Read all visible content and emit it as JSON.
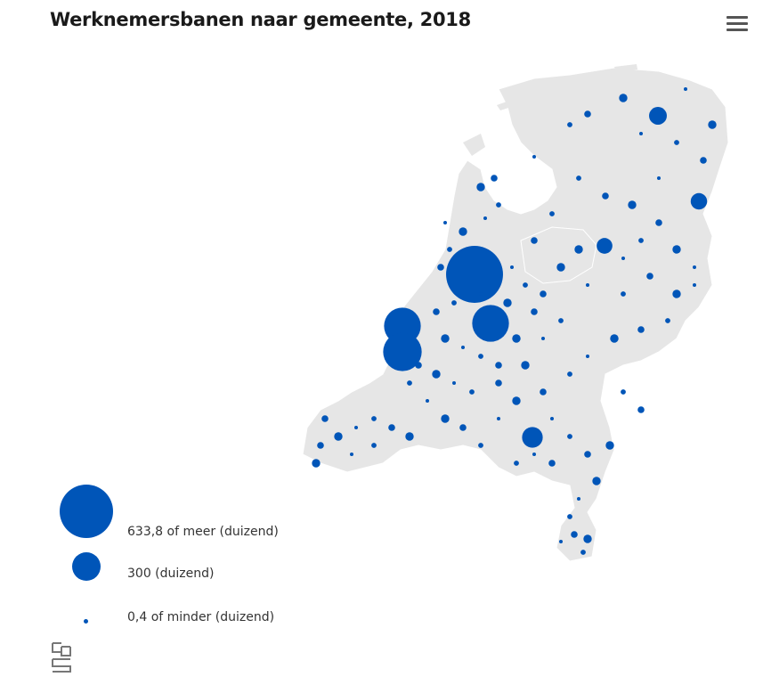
{
  "title": "Werknemersbanen naar gemeente, 2018",
  "menu_icon": "hamburger-menu-icon",
  "colors": {
    "bubble": "#0055b8",
    "land": "#e6e6e6",
    "border": "#ffffff"
  },
  "legend": [
    {
      "label": "633,8 of meer (duizend)",
      "value": 633.8
    },
    {
      "label": "300 (duizend)",
      "value": 300
    },
    {
      "label": "0,4 of minder (duizend)",
      "value": 0.4
    }
  ],
  "logo_icon": "cbs-logo-icon",
  "chart_data": {
    "type": "bubble-map",
    "bubbles": [
      {
        "value": 720
      },
      {
        "value": 300
      },
      {
        "value": 300
      },
      {
        "value": 330
      },
      {
        "value": 95
      },
      {
        "value": 70
      },
      {
        "value": 60
      },
      {
        "value": 55
      }
    ]
  }
}
